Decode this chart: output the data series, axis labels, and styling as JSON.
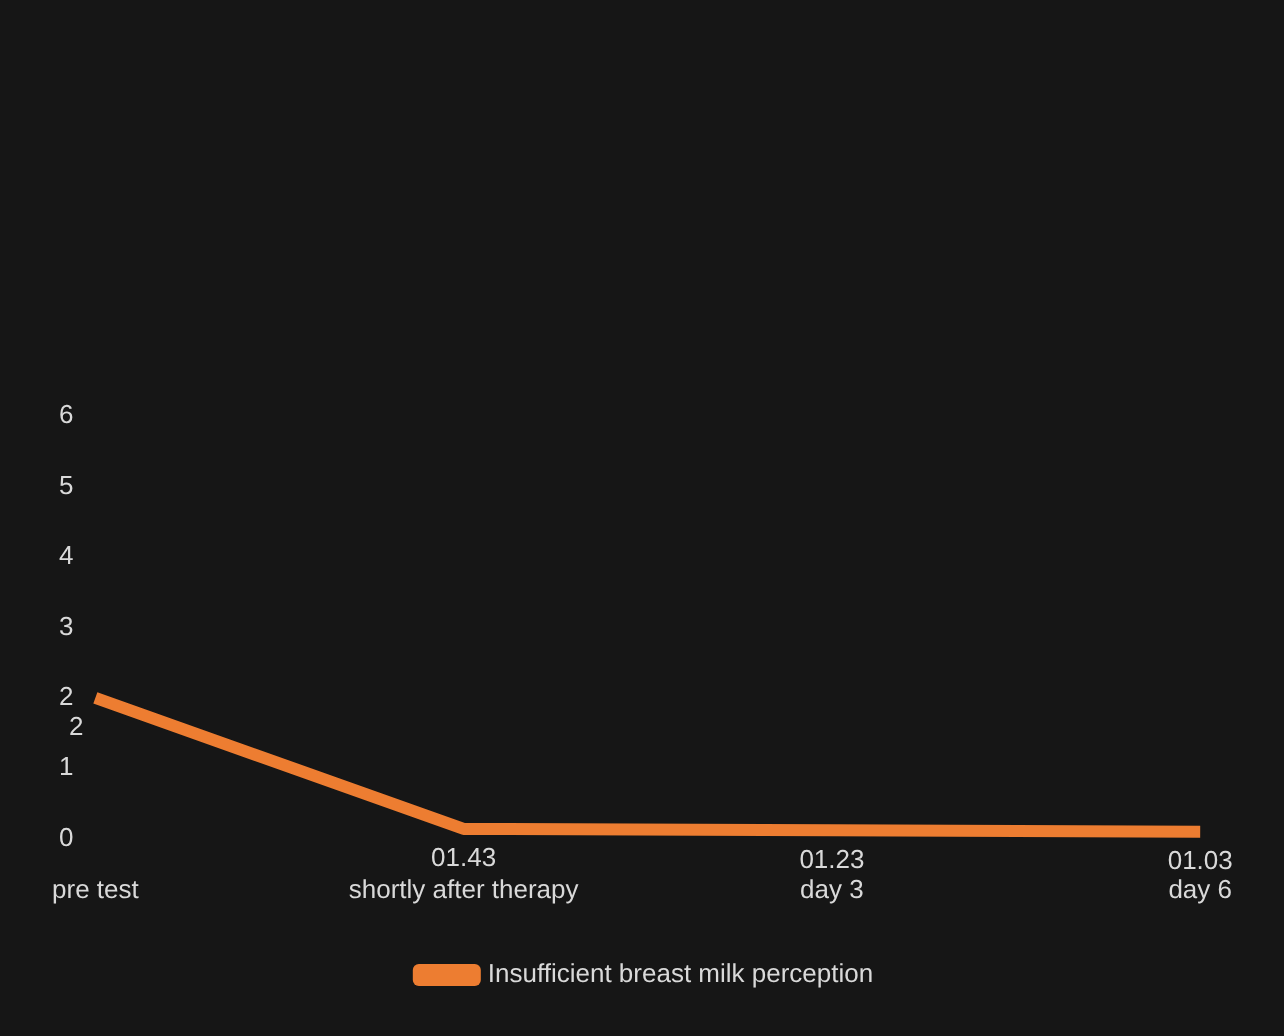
{
  "chart_data": {
    "type": "line",
    "categories": [
      "pre test",
      "shortly after therapy",
      "day 3",
      "day 6"
    ],
    "series": [
      {
        "name": "Insufficient breast milk perception",
        "color": "#ed7d31",
        "values": [
          2,
          0.14,
          0.12,
          0.1
        ]
      }
    ],
    "annotations": [
      {
        "text": "2",
        "x": "pre test",
        "y": 2
      },
      {
        "text": "01.43",
        "x": "shortly after therapy",
        "y": 0.14
      },
      {
        "text": "01.23",
        "x": "day 3",
        "y": 0.12
      },
      {
        "text": "01.03",
        "x": "day 6",
        "y": 0.1
      }
    ],
    "ylim": [
      0,
      6
    ],
    "yticks": [
      0,
      1,
      2,
      3,
      4,
      5,
      6
    ],
    "grid": false,
    "legend": "bottom",
    "marker": "none"
  }
}
